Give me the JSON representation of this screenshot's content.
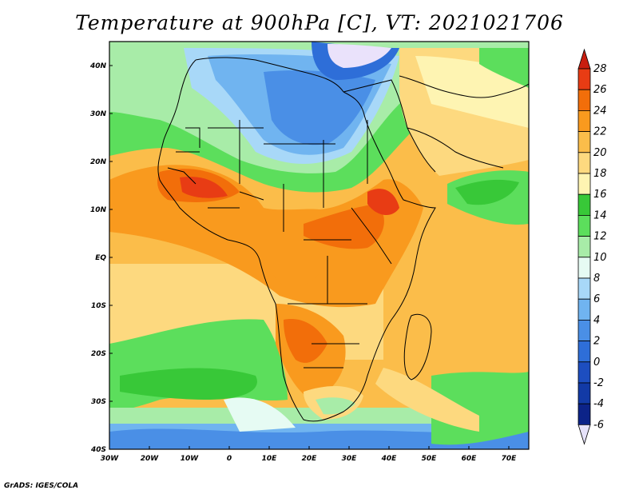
{
  "title": "Temperature at 900hPa [C], VT: 2021021706",
  "credit": "GrADS: IGES/COLA",
  "map": {
    "lon_ticks": [
      "30W",
      "20W",
      "10W",
      "0",
      "10E",
      "20E",
      "30E",
      "40E",
      "50E",
      "60E",
      "70E"
    ],
    "lat_ticks": [
      "40N",
      "30N",
      "20N",
      "10N",
      "EQ",
      "10S",
      "20S",
      "30S",
      "40S"
    ],
    "lon_range": [
      -30,
      75
    ],
    "lat_range": [
      -40,
      45
    ]
  },
  "colorbar": {
    "labels": [
      "28",
      "26",
      "24",
      "22",
      "20",
      "18",
      "16",
      "14",
      "12",
      "10",
      "8",
      "6",
      "4",
      "2",
      "0",
      "-2",
      "-4",
      "-6"
    ],
    "colors": [
      "#e83c14",
      "#f26e0a",
      "#f99a1e",
      "#fbbd4a",
      "#fdd97f",
      "#fef4b2",
      "#38c838",
      "#5cde5c",
      "#a8eca8",
      "#e6fbf3",
      "#a8d8f8",
      "#70b4f0",
      "#4a8fe6",
      "#2e6ed8",
      "#1d4ec0",
      "#123aa6",
      "#0c2388",
      "#eae2fb"
    ],
    "top_arrow_color": "#c81e10",
    "bottom_arrow_color": "#e6e2fa"
  }
}
